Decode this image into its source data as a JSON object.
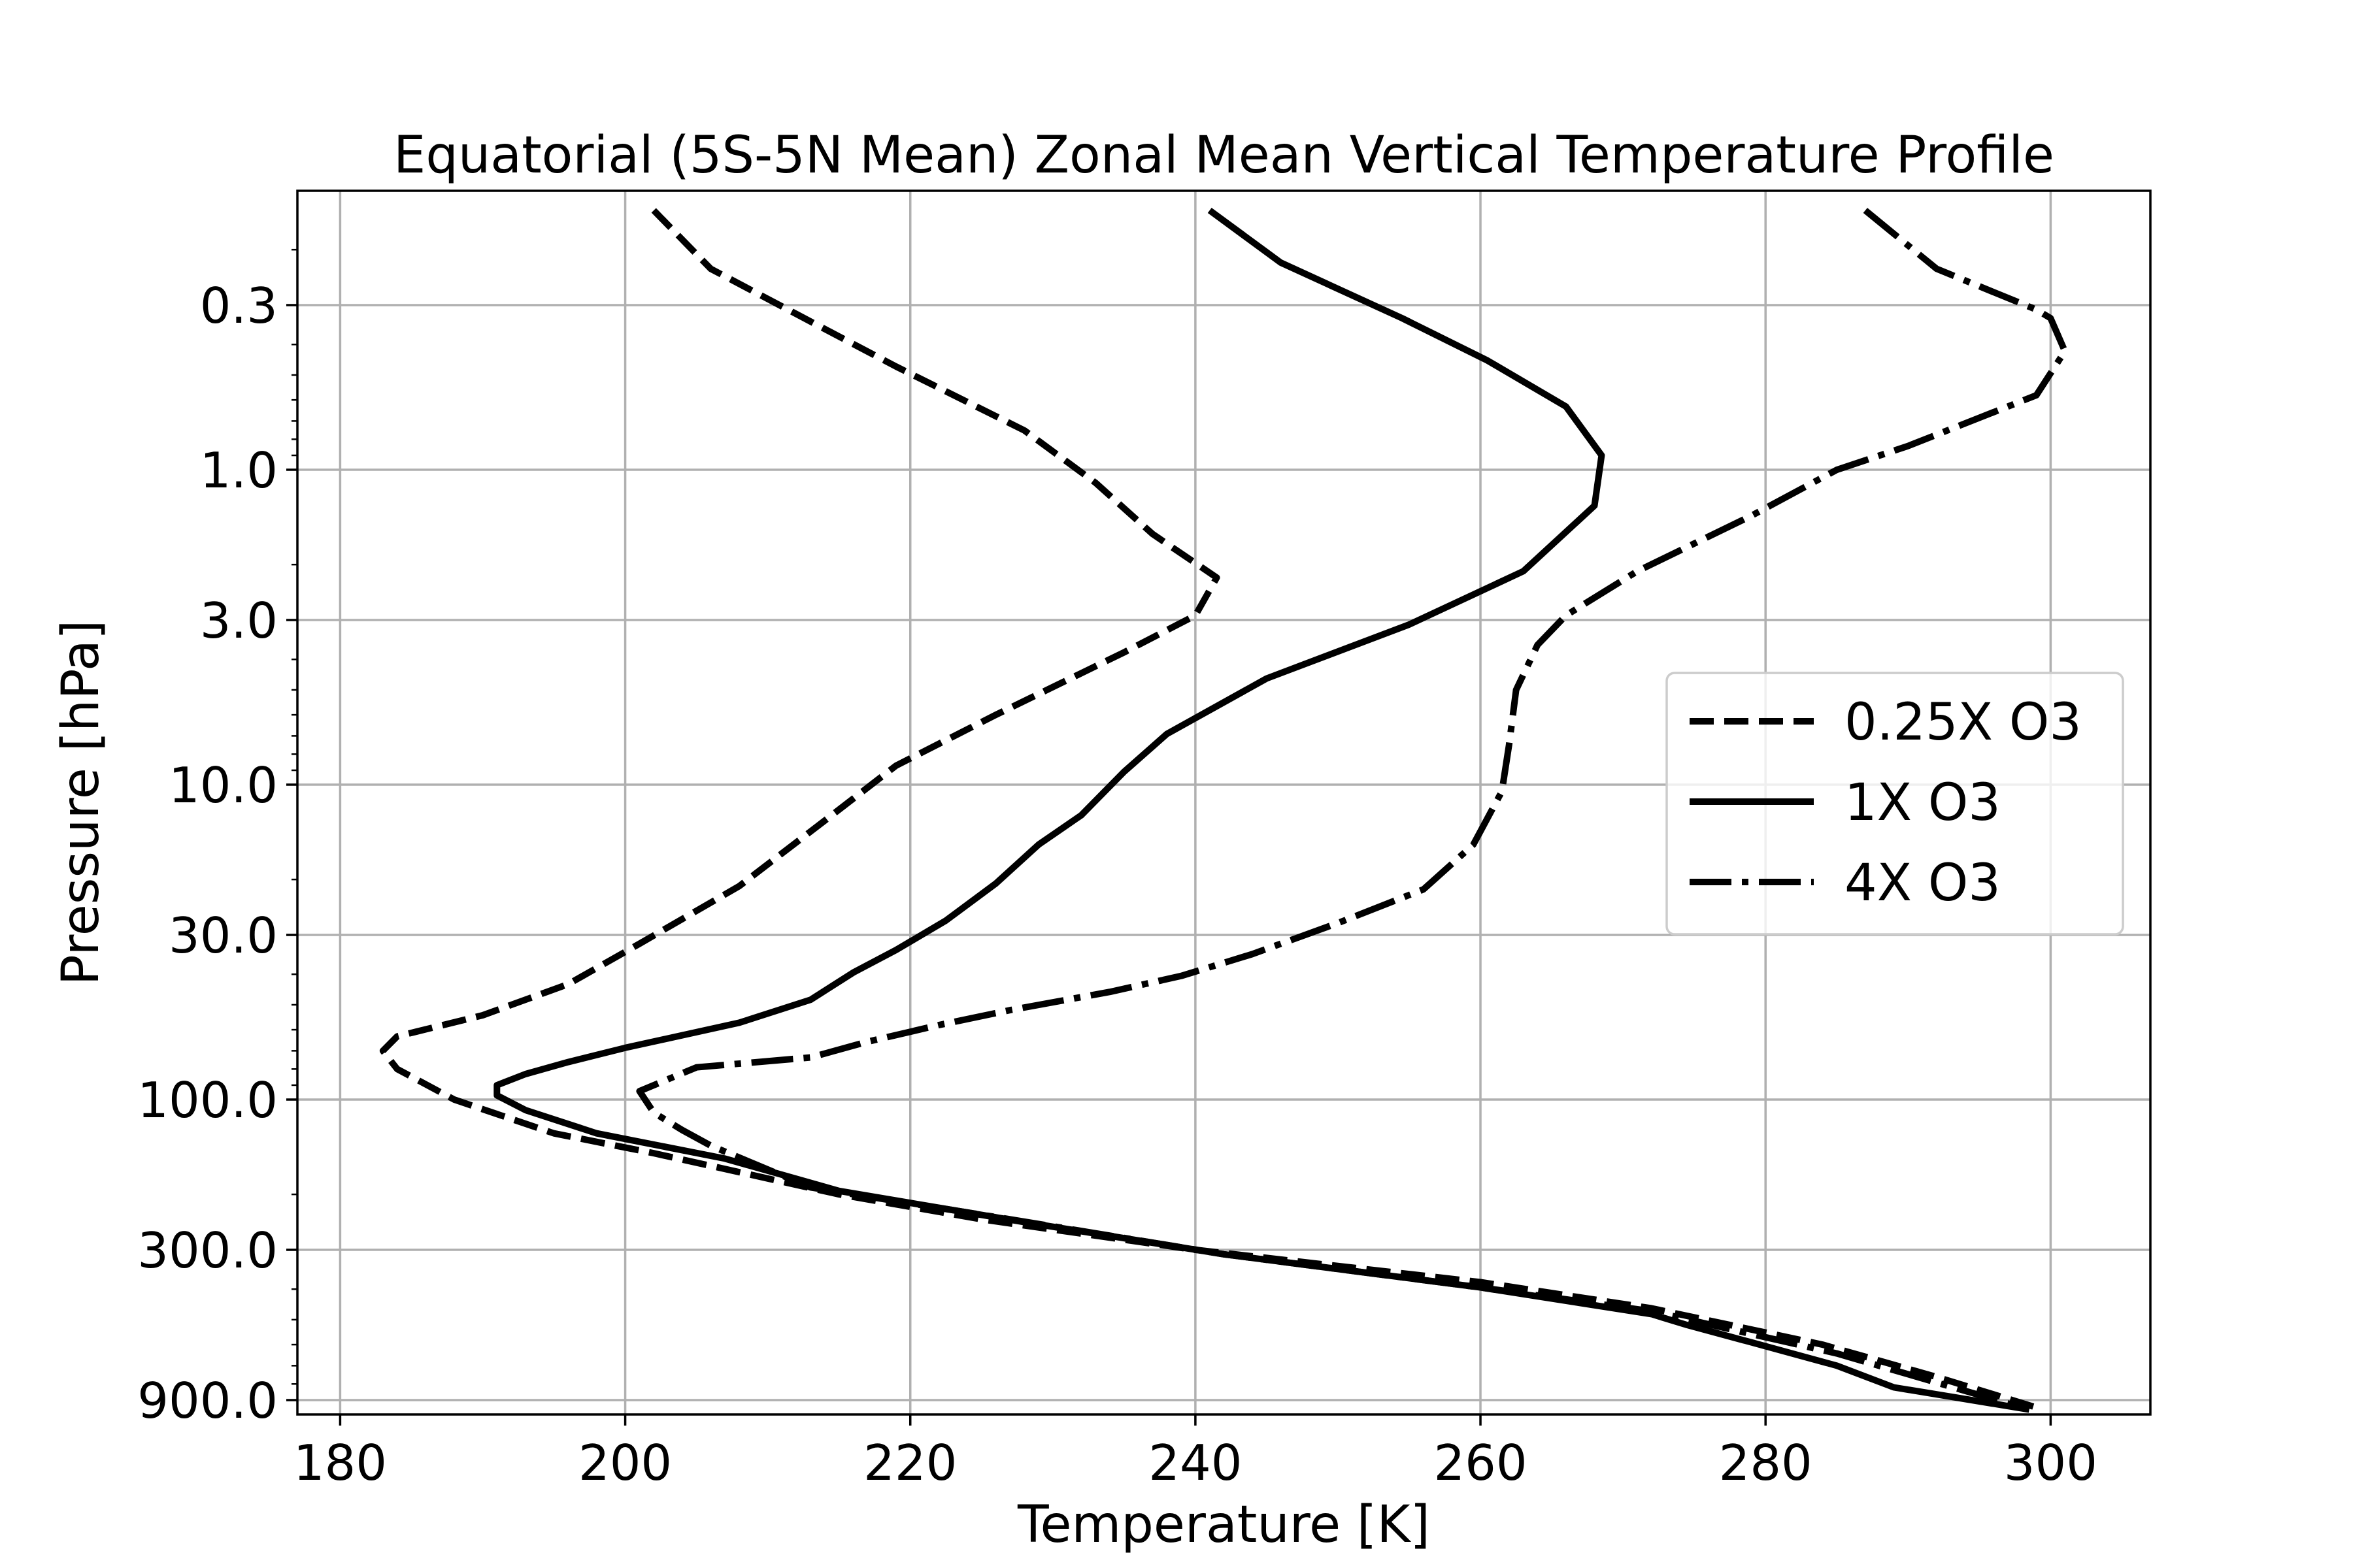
{
  "chart_data": {
    "type": "line",
    "title": "Equatorial (5S-5N Mean) Zonal Mean Vertical Temperature Profile",
    "xlabel": "Temperature [K]",
    "ylabel": "Pressure [hPa]",
    "xlim": [
      177,
      307
    ],
    "ylim": [
      1000,
      0.13
    ],
    "yscale": "log",
    "y_inverted": true,
    "grid": true,
    "legend_position": "center-right",
    "xticks": [
      180,
      200,
      220,
      240,
      260,
      280,
      300
    ],
    "xtick_labels": [
      "180",
      "200",
      "220",
      "240",
      "260",
      "280",
      "300"
    ],
    "yticks": [
      0.3,
      1.0,
      3.0,
      10.0,
      30.0,
      100.0,
      300.0,
      900.0
    ],
    "ytick_labels": [
      "0.3",
      "1.0",
      "3.0",
      "10.0",
      "30.0",
      "100.0",
      "300.0",
      "900.0"
    ],
    "series": [
      {
        "name": "0.25X O3",
        "linestyle": "dashed",
        "color": "#000000",
        "points": [
          [
            202,
            0.15
          ],
          [
            206,
            0.23
          ],
          [
            212,
            0.32
          ],
          [
            219,
            0.47
          ],
          [
            228,
            0.75
          ],
          [
            233,
            1.1
          ],
          [
            237,
            1.6
          ],
          [
            241.5,
            2.2
          ],
          [
            240,
            2.9
          ],
          [
            235,
            3.8
          ],
          [
            226,
            6.0
          ],
          [
            219,
            8.7
          ],
          [
            214,
            13
          ],
          [
            208,
            21
          ],
          [
            201,
            32
          ],
          [
            196,
            43
          ],
          [
            190,
            54
          ],
          [
            184,
            63
          ],
          [
            183,
            70
          ],
          [
            184,
            80
          ],
          [
            188,
            100
          ],
          [
            195,
            128
          ],
          [
            202,
            148
          ],
          [
            208,
            170
          ],
          [
            215,
            200
          ],
          [
            225,
            240
          ],
          [
            240,
            300
          ],
          [
            260,
            380
          ],
          [
            272,
            460
          ],
          [
            284,
            600
          ],
          [
            292,
            760
          ],
          [
            299,
            950
          ]
        ]
      },
      {
        "name": "1X O3",
        "linestyle": "solid",
        "color": "#000000",
        "points": [
          [
            241,
            0.15
          ],
          [
            246,
            0.22
          ],
          [
            254.5,
            0.33
          ],
          [
            260.5,
            0.45
          ],
          [
            266,
            0.63
          ],
          [
            268.5,
            0.9
          ],
          [
            268,
            1.3
          ],
          [
            263,
            2.1
          ],
          [
            255,
            3.1
          ],
          [
            245,
            4.6
          ],
          [
            238,
            6.9
          ],
          [
            235,
            9.1
          ],
          [
            232,
            12.5
          ],
          [
            229,
            15.5
          ],
          [
            226,
            20.6
          ],
          [
            222.5,
            27
          ],
          [
            219,
            33.5
          ],
          [
            216,
            39.5
          ],
          [
            213,
            48.2
          ],
          [
            208,
            57
          ],
          [
            200,
            68.5
          ],
          [
            196,
            76
          ],
          [
            193,
            83
          ],
          [
            191,
            90
          ],
          [
            191,
            97
          ],
          [
            193,
            108
          ],
          [
            198,
            128
          ],
          [
            207,
            154
          ],
          [
            215,
            195
          ],
          [
            228,
            245
          ],
          [
            242,
            310
          ],
          [
            260,
            395
          ],
          [
            272,
            480
          ],
          [
            274.5,
            520
          ],
          [
            279,
            590
          ],
          [
            285,
            700
          ],
          [
            289,
            820
          ],
          [
            298.5,
            965
          ]
        ]
      },
      {
        "name": "4X O3",
        "linestyle": "dashdot",
        "color": "#000000",
        "points": [
          [
            287,
            0.15
          ],
          [
            292,
            0.23
          ],
          [
            299,
            0.31
          ],
          [
            300,
            0.33
          ],
          [
            301,
            0.42
          ],
          [
            299,
            0.58
          ],
          [
            290,
            0.84
          ],
          [
            285,
            1.0
          ],
          [
            279,
            1.4
          ],
          [
            271,
            2.1
          ],
          [
            266,
            2.9
          ],
          [
            264,
            3.6
          ],
          [
            262.5,
            5.0
          ],
          [
            262,
            7.5
          ],
          [
            261.5,
            10.5
          ],
          [
            259.5,
            15.5
          ],
          [
            256,
            21.5
          ],
          [
            250,
            27.5
          ],
          [
            244,
            34.5
          ],
          [
            239,
            40.5
          ],
          [
            234,
            45.5
          ],
          [
            227,
            52
          ],
          [
            222,
            58
          ],
          [
            217,
            65.5
          ],
          [
            213,
            73.5
          ],
          [
            205,
            79
          ],
          [
            201,
            94
          ],
          [
            202,
            110
          ],
          [
            204,
            125
          ],
          [
            206,
            140
          ],
          [
            213,
            190
          ],
          [
            227,
            240
          ],
          [
            242,
            310
          ],
          [
            260,
            395
          ],
          [
            272,
            470
          ],
          [
            285,
            640
          ],
          [
            298.5,
            965
          ]
        ]
      }
    ]
  }
}
